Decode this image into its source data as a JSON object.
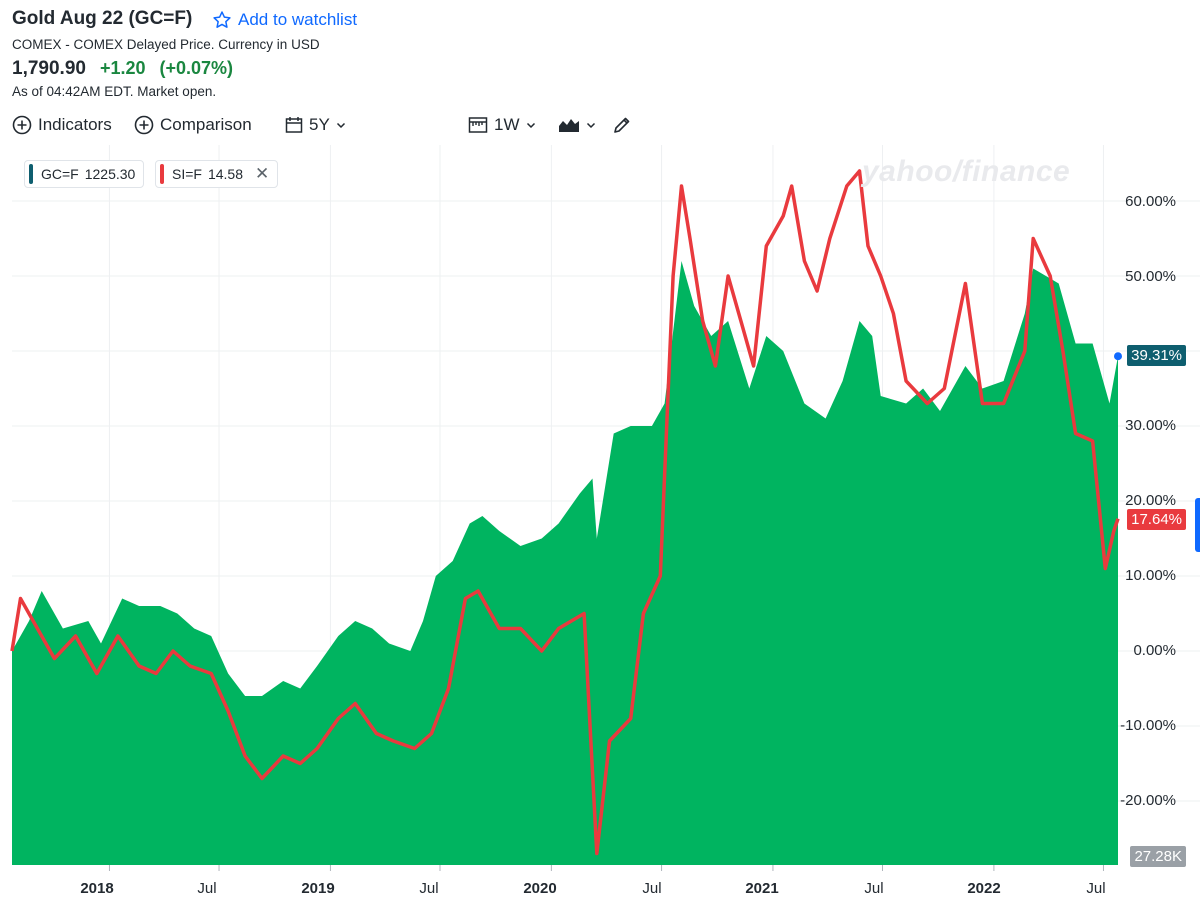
{
  "header": {
    "title": "Gold Aug 22 (GC=F)",
    "watchlist_label": "Add to watchlist",
    "subtitle": "COMEX - COMEX Delayed Price. Currency in USD",
    "price": "1,790.90",
    "change": "+1.20",
    "change_pct": "(+0.07%)",
    "as_of": "As of 04:42AM EDT. Market open."
  },
  "toolbar": {
    "indicators_label": "Indicators",
    "comparison_label": "Comparison",
    "range_label": "5Y",
    "interval_label": "1W",
    "chart_type_icon": "area-chart-icon",
    "draw_icon": "pencil-icon"
  },
  "legend": [
    {
      "symbol": "GC=F",
      "value": "1225.30",
      "color": "#0e5e6f"
    },
    {
      "symbol": "SI=F",
      "value": "14.58",
      "color": "#e93a3e",
      "removable": true
    }
  ],
  "watermark": "yahoo/finance",
  "y_axis_labels": [
    "60.00%",
    "50.00%",
    "30.00%",
    "20.00%",
    "10.00%",
    "0.00%",
    "-10.00%",
    "-20.00%"
  ],
  "badges": {
    "gold_last": "39.31%",
    "silver_last": "17.64%",
    "volume_last": "27.28K"
  },
  "x_axis_labels": [
    {
      "text": "2018",
      "bold": true
    },
    {
      "text": "Jul",
      "bold": false
    },
    {
      "text": "2019",
      "bold": true
    },
    {
      "text": "Jul",
      "bold": false
    },
    {
      "text": "2020",
      "bold": true
    },
    {
      "text": "Jul",
      "bold": false
    },
    {
      "text": "2021",
      "bold": true
    },
    {
      "text": "Jul",
      "bold": false
    },
    {
      "text": "2022",
      "bold": true
    },
    {
      "text": "Jul",
      "bold": false
    }
  ],
  "colors": {
    "gold_area": "#00b460",
    "silver_line": "#e93a3e",
    "gold_badge": "#0e5e6f",
    "silver_badge": "#e93a3e",
    "volume_badge": "#9aa0a6",
    "accent": "#0f69ff"
  },
  "chart_data": {
    "type": "area",
    "title": "Gold Aug 22 (GC=F)",
    "y_unit": "% change",
    "ylim": [
      -28,
      67
    ],
    "grid": true,
    "legend_position": "top-left",
    "x_range": [
      "2017-07-24",
      "2022-07-25"
    ],
    "series": [
      {
        "name": "GC=F",
        "kind": "area",
        "color": "#00b460",
        "points": [
          [
            "2017-07-24",
            0
          ],
          [
            "2017-08-21",
            4
          ],
          [
            "2017-09-11",
            8
          ],
          [
            "2017-10-16",
            3
          ],
          [
            "2017-11-27",
            4
          ],
          [
            "2017-12-18",
            1
          ],
          [
            "2018-01-22",
            7
          ],
          [
            "2018-02-19",
            6
          ],
          [
            "2018-03-26",
            6
          ],
          [
            "2018-04-23",
            5
          ],
          [
            "2018-05-21",
            3
          ],
          [
            "2018-06-18",
            2
          ],
          [
            "2018-07-16",
            -3
          ],
          [
            "2018-08-13",
            -6
          ],
          [
            "2018-09-10",
            -6
          ],
          [
            "2018-10-15",
            -4
          ],
          [
            "2018-11-12",
            -5
          ],
          [
            "2018-12-10",
            -2
          ],
          [
            "2019-01-14",
            2
          ],
          [
            "2019-02-11",
            4
          ],
          [
            "2019-03-11",
            3
          ],
          [
            "2019-04-08",
            1
          ],
          [
            "2019-05-13",
            0
          ],
          [
            "2019-06-03",
            4
          ],
          [
            "2019-06-24",
            10
          ],
          [
            "2019-07-22",
            12
          ],
          [
            "2019-08-19",
            17
          ],
          [
            "2019-09-09",
            18
          ],
          [
            "2019-10-07",
            16
          ],
          [
            "2019-11-11",
            14
          ],
          [
            "2019-12-16",
            15
          ],
          [
            "2020-01-13",
            17
          ],
          [
            "2020-02-17",
            21
          ],
          [
            "2020-03-09",
            23
          ],
          [
            "2020-03-16",
            15
          ],
          [
            "2020-04-13",
            29
          ],
          [
            "2020-05-11",
            30
          ],
          [
            "2020-06-15",
            30
          ],
          [
            "2020-07-06",
            33
          ],
          [
            "2020-08-03",
            52
          ],
          [
            "2020-08-24",
            46
          ],
          [
            "2020-09-21",
            42
          ],
          [
            "2020-10-19",
            44
          ],
          [
            "2020-11-23",
            35
          ],
          [
            "2020-12-21",
            42
          ],
          [
            "2021-01-18",
            40
          ],
          [
            "2021-02-22",
            33
          ],
          [
            "2021-03-29",
            31
          ],
          [
            "2021-04-26",
            36
          ],
          [
            "2021-05-24",
            44
          ],
          [
            "2021-06-14",
            42
          ],
          [
            "2021-06-28",
            34
          ],
          [
            "2021-08-09",
            33
          ],
          [
            "2021-09-06",
            35
          ],
          [
            "2021-10-04",
            32
          ],
          [
            "2021-11-15",
            38
          ],
          [
            "2021-12-13",
            35
          ],
          [
            "2022-01-17",
            36
          ],
          [
            "2022-02-21",
            45
          ],
          [
            "2022-03-07",
            51
          ],
          [
            "2022-04-18",
            49
          ],
          [
            "2022-05-16",
            41
          ],
          [
            "2022-06-13",
            41
          ],
          [
            "2022-07-11",
            33
          ],
          [
            "2022-07-25",
            39.31
          ]
        ]
      },
      {
        "name": "SI=F",
        "kind": "line",
        "color": "#e93a3e",
        "points": [
          [
            "2017-07-24",
            0
          ],
          [
            "2017-08-07",
            7
          ],
          [
            "2017-09-04",
            3
          ],
          [
            "2017-10-02",
            -1
          ],
          [
            "2017-11-06",
            2
          ],
          [
            "2017-12-11",
            -3
          ],
          [
            "2018-01-15",
            2
          ],
          [
            "2018-02-19",
            -2
          ],
          [
            "2018-03-19",
            -3
          ],
          [
            "2018-04-16",
            0
          ],
          [
            "2018-05-14",
            -2
          ],
          [
            "2018-06-18",
            -3
          ],
          [
            "2018-07-16",
            -8
          ],
          [
            "2018-08-13",
            -14
          ],
          [
            "2018-09-10",
            -17
          ],
          [
            "2018-10-15",
            -14
          ],
          [
            "2018-11-12",
            -15
          ],
          [
            "2018-12-10",
            -13
          ],
          [
            "2019-01-14",
            -9
          ],
          [
            "2019-02-11",
            -7
          ],
          [
            "2019-03-18",
            -11
          ],
          [
            "2019-04-15",
            -12
          ],
          [
            "2019-05-20",
            -13
          ],
          [
            "2019-06-17",
            -11
          ],
          [
            "2019-07-15",
            -5
          ],
          [
            "2019-08-12",
            7
          ],
          [
            "2019-09-02",
            8
          ],
          [
            "2019-10-07",
            3
          ],
          [
            "2019-11-11",
            3
          ],
          [
            "2019-12-16",
            0
          ],
          [
            "2020-01-13",
            3
          ],
          [
            "2020-02-24",
            5
          ],
          [
            "2020-03-16",
            -27
          ],
          [
            "2020-04-06",
            -12
          ],
          [
            "2020-05-11",
            -9
          ],
          [
            "2020-06-01",
            5
          ],
          [
            "2020-06-29",
            10
          ],
          [
            "2020-07-20",
            50
          ],
          [
            "2020-08-03",
            62
          ],
          [
            "2020-08-17",
            55
          ],
          [
            "2020-09-07",
            44
          ],
          [
            "2020-09-28",
            38
          ],
          [
            "2020-10-19",
            50
          ],
          [
            "2020-11-09",
            44
          ],
          [
            "2020-11-30",
            38
          ],
          [
            "2020-12-21",
            54
          ],
          [
            "2021-01-18",
            58
          ],
          [
            "2021-02-01",
            62
          ],
          [
            "2021-02-22",
            52
          ],
          [
            "2021-03-15",
            48
          ],
          [
            "2021-04-05",
            55
          ],
          [
            "2021-05-03",
            62
          ],
          [
            "2021-05-24",
            64
          ],
          [
            "2021-06-07",
            54
          ],
          [
            "2021-06-28",
            50
          ],
          [
            "2021-07-19",
            45
          ],
          [
            "2021-08-09",
            36
          ],
          [
            "2021-09-13",
            33
          ],
          [
            "2021-10-11",
            35
          ],
          [
            "2021-11-15",
            49
          ],
          [
            "2021-12-13",
            33
          ],
          [
            "2022-01-17",
            33
          ],
          [
            "2022-02-21",
            40
          ],
          [
            "2022-03-07",
            55
          ],
          [
            "2022-04-04",
            50
          ],
          [
            "2022-04-25",
            40
          ],
          [
            "2022-05-16",
            29
          ],
          [
            "2022-06-13",
            28
          ],
          [
            "2022-07-04",
            11
          ],
          [
            "2022-07-18",
            16
          ],
          [
            "2022-07-25",
            17.64
          ]
        ]
      }
    ],
    "y_ticks": [
      60,
      50,
      30,
      20,
      10,
      0,
      -10,
      -20
    ],
    "x_ticks": [
      [
        "2018-01-01",
        "2018"
      ],
      [
        "2018-07-01",
        "Jul"
      ],
      [
        "2019-01-01",
        "2019"
      ],
      [
        "2019-07-01",
        "Jul"
      ],
      [
        "2020-01-01",
        "2020"
      ],
      [
        "2020-07-01",
        "Jul"
      ],
      [
        "2021-01-01",
        "2021"
      ],
      [
        "2021-07-01",
        "Jul"
      ],
      [
        "2022-01-01",
        "2022"
      ],
      [
        "2022-07-01",
        "Jul"
      ]
    ]
  }
}
